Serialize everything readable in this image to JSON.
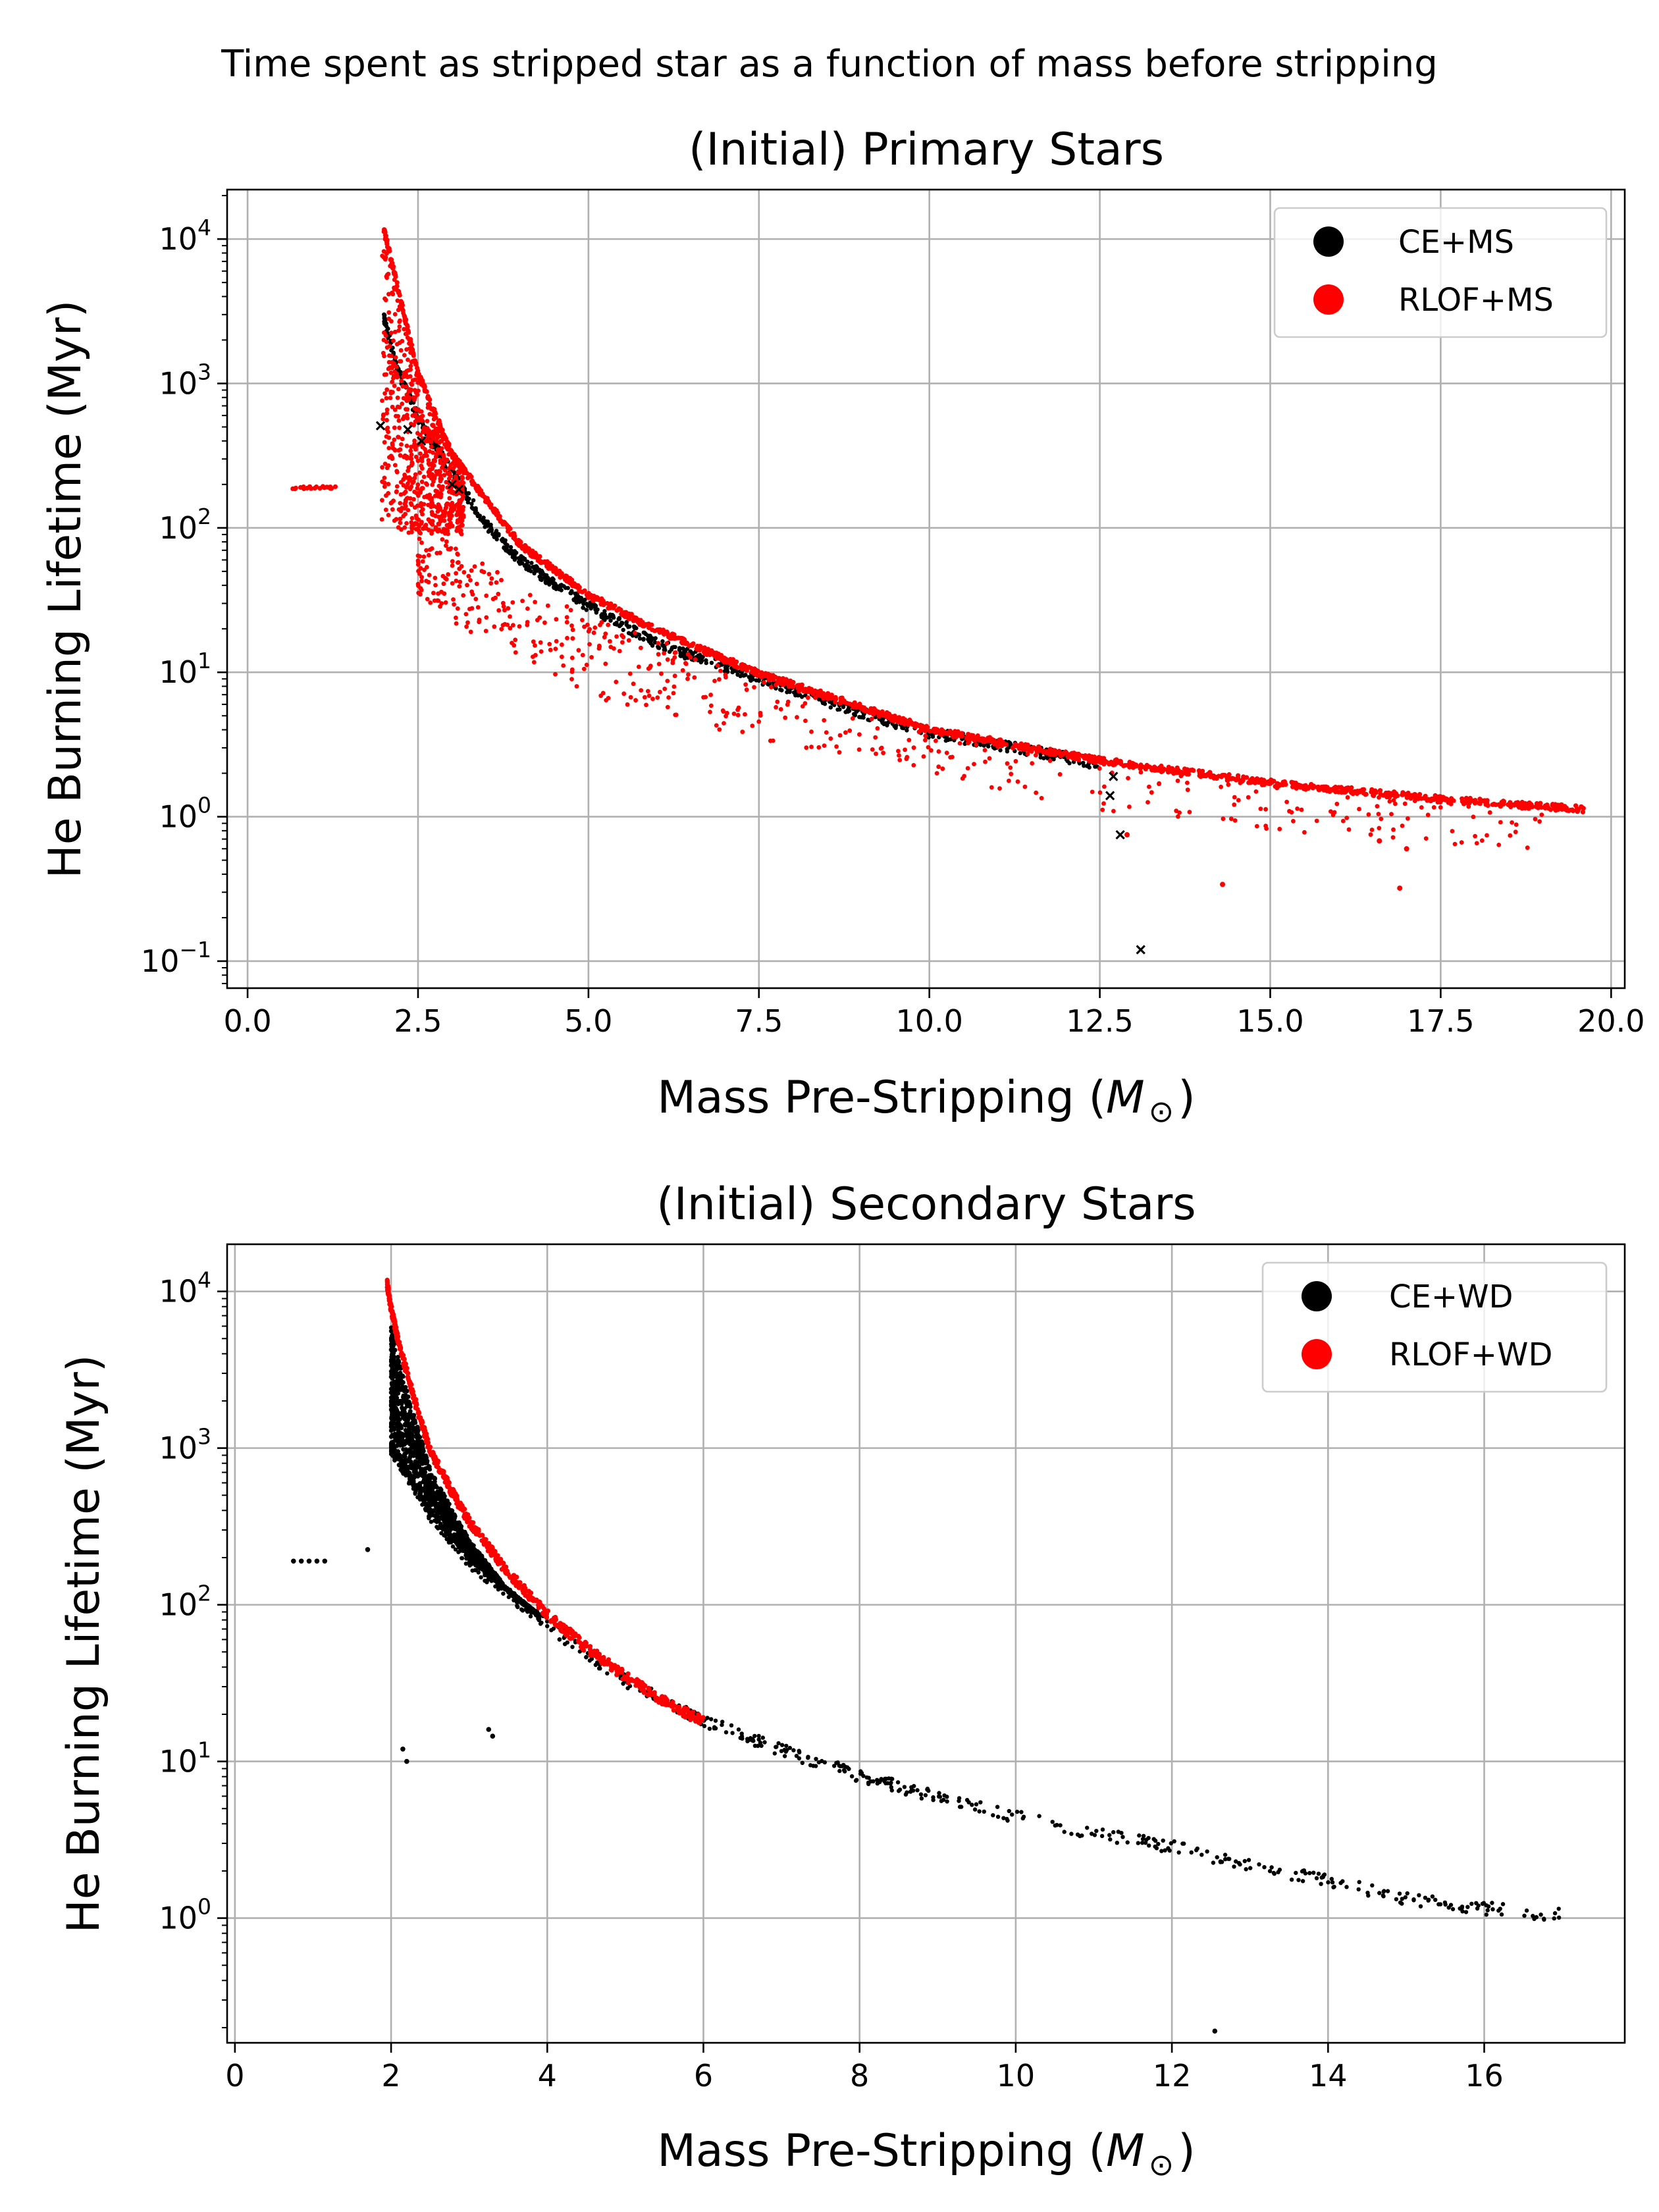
{
  "figure": {
    "suptitle": "Time spent as stripped star as a function of mass before stripping"
  },
  "chart_data": [
    {
      "type": "scatter",
      "title": "(Initial) Primary Stars",
      "xlabel": "Mass Pre-Stripping ($M_\\odot$)",
      "xlabel_parts": {
        "text": "Mass Pre-Stripping (",
        "italic": "M",
        "sub": "⊙",
        "close": ")"
      },
      "ylabel": "He Burning Lifetime (Myr)",
      "xlim": [
        -0.3,
        20.2
      ],
      "ylim": [
        0.065,
        22000
      ],
      "yscale": "log",
      "xticks": [
        0.0,
        2.5,
        5.0,
        7.5,
        10.0,
        12.5,
        15.0,
        17.5,
        20.0
      ],
      "xtick_labels": [
        "0.0",
        "2.5",
        "5.0",
        "7.5",
        "10.0",
        "12.5",
        "15.0",
        "17.5",
        "20.0"
      ],
      "yticks": [
        0.1,
        1,
        10,
        100,
        1000,
        10000
      ],
      "ytick_labels": [
        {
          "base": "10",
          "exp": "−1"
        },
        {
          "base": "10",
          "exp": "0"
        },
        {
          "base": "10",
          "exp": "1"
        },
        {
          "base": "10",
          "exp": "2"
        },
        {
          "base": "10",
          "exp": "3"
        },
        {
          "base": "10",
          "exp": "4"
        }
      ],
      "grid": true,
      "legend": "top-right",
      "series": [
        {
          "name": "CE+MS",
          "color": "#000000",
          "main_band": {
            "x": [
              2.0,
              2.2,
              2.5,
              3.0,
              3.5,
              4.0,
              5.0,
              6.0,
              7.5,
              9.0,
              10.0,
              12.0,
              12.5
            ],
            "y": [
              3000,
              1300,
              600,
              250,
              110,
              62,
              30,
              16.5,
              9.5,
              5.5,
              4.0,
              2.7,
              2.4
            ]
          },
          "points": [
            {
              "x": 1.95,
              "y": 510
            },
            {
              "x": 2.35,
              "y": 480
            },
            {
              "x": 2.55,
              "y": 400
            },
            {
              "x": 3.0,
              "y": 200
            },
            {
              "x": 3.1,
              "y": 185
            },
            {
              "x": 12.7,
              "y": 1.9
            },
            {
              "x": 12.65,
              "y": 1.4
            },
            {
              "x": 12.8,
              "y": 0.75
            },
            {
              "x": 13.1,
              "y": 0.12
            }
          ]
        },
        {
          "name": "RLOF+MS",
          "color": "#ff0000",
          "upper_band": {
            "x": [
              2.0,
              2.5,
              3.0,
              4.0,
              5.0,
              6.0,
              7.5,
              10.0,
              12.5,
              15.0,
              17.5,
              19.6
            ],
            "y": [
              12000,
              1200,
              330,
              78,
              35,
              20,
              10,
              4.1,
              2.5,
              1.75,
              1.35,
              1.15
            ]
          },
          "scatter_cloud": {
            "x": [
              2.5,
              3.0,
              4.0,
              5.0,
              6.0,
              7.5,
              9.0,
              10.0,
              12.5,
              15.0,
              17.5,
              19.0
            ],
            "y_median": [
              65,
              40,
              22,
              13,
              9,
              6.5,
              4.5,
              3.6,
              2.1,
              1.5,
              1.2,
              1.05
            ]
          },
          "low_mass_points": {
            "x": [
              0.7,
              0.8,
              0.9,
              1.0,
              1.1,
              1.2,
              1.25
            ],
            "y": [
              190,
              190,
              190,
              190,
              190,
              190,
              190
            ]
          },
          "outliers": [
            {
              "x": 12.9,
              "y": 0.75
            },
            {
              "x": 14.3,
              "y": 0.34
            },
            {
              "x": 16.9,
              "y": 0.32
            },
            {
              "x": 16.6,
              "y": 0.68
            },
            {
              "x": 17.0,
              "y": 0.6
            }
          ]
        }
      ]
    },
    {
      "type": "scatter",
      "title": "(Initial) Secondary Stars",
      "xlabel": "Mass Pre-Stripping ($M_\\odot$)",
      "xlabel_parts": {
        "text": "Mass Pre-Stripping (",
        "italic": "M",
        "sub": "⊙",
        "close": ")"
      },
      "ylabel": "He Burning Lifetime (Myr)",
      "xlim": [
        -0.1,
        17.8
      ],
      "ylim": [
        0.16,
        20000
      ],
      "yscale": "log",
      "xticks": [
        0,
        2,
        4,
        6,
        8,
        10,
        12,
        14,
        16
      ],
      "xtick_labels": [
        "0",
        "2",
        "4",
        "6",
        "8",
        "10",
        "12",
        "14",
        "16"
      ],
      "yticks": [
        1,
        10,
        100,
        1000,
        10000
      ],
      "ytick_labels": [
        {
          "base": "10",
          "exp": "0"
        },
        {
          "base": "10",
          "exp": "1"
        },
        {
          "base": "10",
          "exp": "2"
        },
        {
          "base": "10",
          "exp": "3"
        },
        {
          "base": "10",
          "exp": "4"
        }
      ],
      "grid": true,
      "legend": "top-right",
      "series": [
        {
          "name": "CE+WD",
          "color": "#000000",
          "main_curve": {
            "x": [
              2.0,
              2.2,
              2.5,
              3.0,
              3.5,
              4.0,
              5.0,
              6.0,
              7.0,
              8.0,
              9.0,
              10.0,
              11.0,
              12.0,
              13.0,
              14.0,
              15.0,
              15.7,
              16.2,
              16.8,
              17.0
            ],
            "y": [
              1000,
              700,
              380,
              190,
              120,
              75,
              33,
              18.5,
              12,
              8.2,
              6.0,
              4.5,
              3.5,
              2.9,
              2.2,
              1.75,
              1.35,
              1.2,
              1.15,
              1.0,
              1.1
            ]
          },
          "low_mass_points": {
            "x": [
              0.75,
              0.85,
              0.95,
              1.05,
              1.15,
              1.7
            ],
            "y": [
              190,
              190,
              190,
              190,
              190,
              225
            ]
          },
          "outliers": [
            {
              "x": 2.15,
              "y": 12
            },
            {
              "x": 2.2,
              "y": 10
            },
            {
              "x": 3.25,
              "y": 16
            },
            {
              "x": 3.3,
              "y": 14.5
            },
            {
              "x": 12.55,
              "y": 0.19
            }
          ]
        },
        {
          "name": "RLOF+WD",
          "color": "#ff0000",
          "curve": {
            "x": [
              1.95,
              2.0,
              2.1,
              2.3,
              2.5,
              2.8,
              3.0,
              3.5,
              4.0,
              4.5,
              5.0,
              5.5,
              6.0
            ],
            "y": [
              11500,
              8000,
              4800,
              2100,
              1000,
              520,
              350,
              165,
              90,
              55,
              36,
              25,
              18.5
            ]
          }
        }
      ]
    }
  ]
}
